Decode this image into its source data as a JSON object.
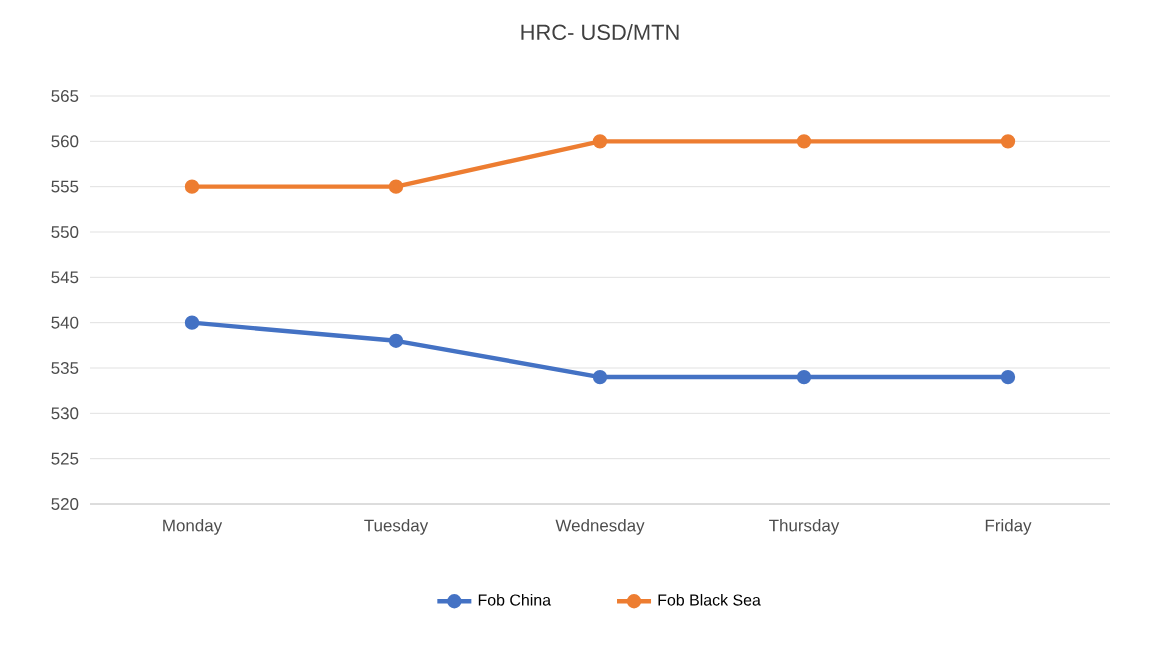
{
  "chart_data": {
    "type": "line",
    "title": "HRC- USD/MTN",
    "categories": [
      "Monday",
      "Tuesday",
      "Wednesday",
      "Thursday",
      "Friday"
    ],
    "series": [
      {
        "name": "Fob China",
        "color": "#4472c4",
        "values": [
          540,
          538,
          534,
          534,
          534
        ]
      },
      {
        "name": "Fob Black Sea",
        "color": "#ed7d31",
        "values": [
          555,
          555,
          560,
          560,
          560
        ]
      }
    ],
    "ylim": [
      520,
      565
    ],
    "yticks": [
      520,
      525,
      530,
      535,
      540,
      545,
      550,
      555,
      560,
      565
    ],
    "grid": "y",
    "legend": "bottom",
    "marker": "circle",
    "line_style": "solid"
  }
}
